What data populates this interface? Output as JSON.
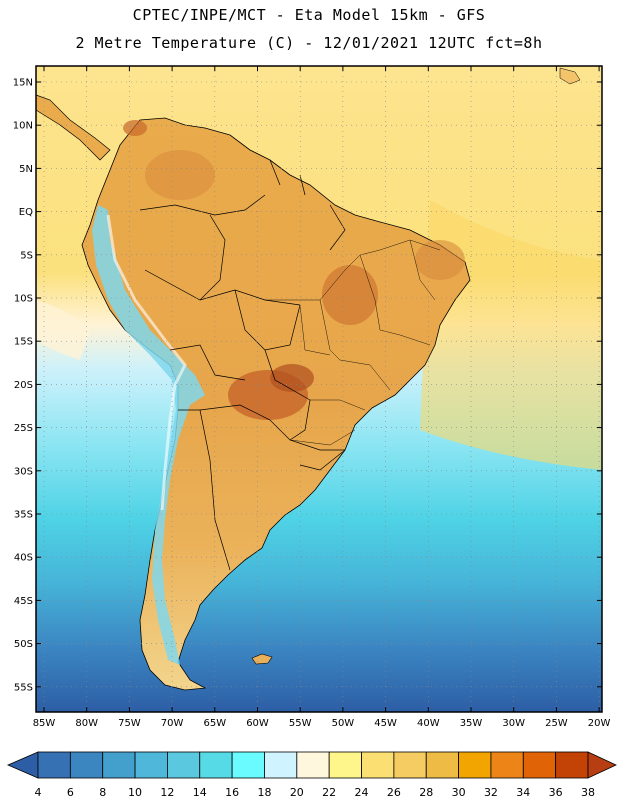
{
  "header": {
    "line1": "CPTEC/INPE/MCT -  Eta Model 15km - GFS",
    "line2": "2 Metre Temperature (C) - 12/01/2021 12UTC fct=8h"
  },
  "axes": {
    "lat_labels": [
      "15N",
      "10N",
      "5N",
      "EQ",
      "5S",
      "10S",
      "15S",
      "20S",
      "25S",
      "30S",
      "35S",
      "40S",
      "45S",
      "50S",
      "55S"
    ],
    "lon_labels": [
      "85W",
      "80W",
      "75W",
      "70W",
      "65W",
      "60W",
      "55W",
      "50W",
      "45W",
      "40W",
      "35W",
      "30W",
      "25W",
      "20W"
    ]
  },
  "colorbar": {
    "labels": [
      "4",
      "6",
      "8",
      "10",
      "12",
      "14",
      "16",
      "18",
      "20",
      "22",
      "24",
      "26",
      "28",
      "30",
      "32",
      "34",
      "36",
      "38"
    ],
    "colors": [
      "#3571b3",
      "#3b85c0",
      "#43a0cd",
      "#4fb7d9",
      "#5ac9e0",
      "#56dbe6",
      "#69fbff",
      "#d0f4ff",
      "#fff6de",
      "#fef68b",
      "#fbdf73",
      "#f5cc61",
      "#eebb44",
      "#f2a400",
      "#ec8417",
      "#e06405",
      "#c34306"
    ],
    "under_color": "#2d5ea5",
    "over_color": "#b73d12"
  },
  "colors": {
    "ocean_cold": "#2d62a6",
    "ocean_mid": "#4fc4dc",
    "ocean_warm": "#fde391",
    "land": "#e8a94a",
    "land_hot": "#c8682b",
    "andes": "#6ecfe8"
  }
}
